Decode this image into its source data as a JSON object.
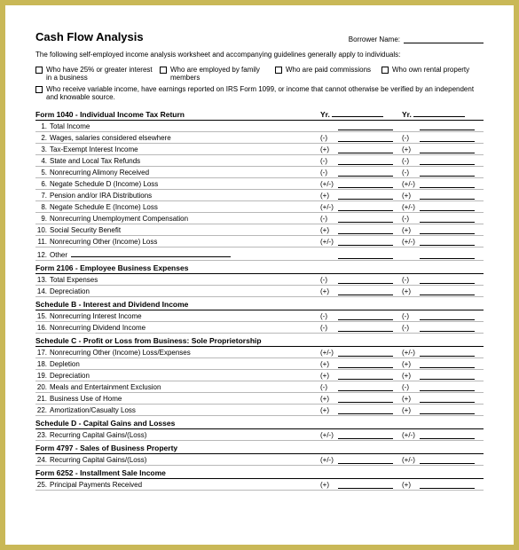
{
  "title": "Cash Flow Analysis",
  "borrower_label": "Borrower Name:",
  "intro": "The following self-employed income analysis worksheet and accompanying guidelines generally apply to individuals:",
  "checks": {
    "c1": "Who have 25% or greater interest in a business",
    "c2": "Who are employed by family members",
    "c3": "Who are paid commissions",
    "c4": "Who own rental property",
    "c5": "Who receive variable income, have earnings reported on IRS Form 1099, or income that cannot otherwise be verified by an independent and knowable source."
  },
  "yr_label": "Yr.",
  "sections": [
    {
      "heading": "Form 1040 - Individual Income Tax Return",
      "show_yr": true,
      "rows": [
        {
          "n": "1.",
          "label": "Total Income",
          "s": ""
        },
        {
          "n": "2.",
          "label": "Wages, salaries considered elsewhere",
          "s": "(-)"
        },
        {
          "n": "3.",
          "label": "Tax-Exempt Interest Income",
          "s": "(+)"
        },
        {
          "n": "4.",
          "label": "State and Local Tax Refunds",
          "s": "(-)"
        },
        {
          "n": "5.",
          "label": "Nonrecurring Alimony Received",
          "s": "(-)"
        },
        {
          "n": "6.",
          "label": "Negate Schedule D (Income) Loss",
          "s": "(+/-)"
        },
        {
          "n": "7.",
          "label": "Pension and/or IRA Distributions",
          "s": "(+)"
        },
        {
          "n": "8.",
          "label": "Negate Schedule E (Income) Loss",
          "s": "(+/-)"
        },
        {
          "n": "9.",
          "label": "Nonrecurring Unemployment Compensation",
          "s": "(-)"
        },
        {
          "n": "10.",
          "label": "Social Security Benefit",
          "s": "(+)"
        },
        {
          "n": "11.",
          "label": "Nonrecurring Other (Income) Loss",
          "s": "(+/-)"
        },
        {
          "n": "12.",
          "label": "Other",
          "s": "",
          "open": true
        }
      ]
    },
    {
      "heading": "Form 2106 - Employee Business Expenses",
      "rows": [
        {
          "n": "13.",
          "label": "Total Expenses",
          "s": "(-)"
        },
        {
          "n": "14.",
          "label": "Depreciation",
          "s": "(+)"
        }
      ]
    },
    {
      "heading": "Schedule B - Interest and Dividend Income",
      "rows": [
        {
          "n": "15.",
          "label": "Nonrecurring Interest Income",
          "s": "(-)"
        },
        {
          "n": "16.",
          "label": "Nonrecurring Dividend Income",
          "s": "(-)"
        }
      ]
    },
    {
      "heading": "Schedule C - Profit or Loss from Business: Sole Proprietorship",
      "rows": [
        {
          "n": "17.",
          "label": "Nonrecurring Other (Income) Loss/Expenses",
          "s": "(+/-)"
        },
        {
          "n": "18.",
          "label": "Depletion",
          "s": "(+)"
        },
        {
          "n": "19.",
          "label": "Depreciation",
          "s": "(+)"
        },
        {
          "n": "20.",
          "label": "Meals and Entertainment Exclusion",
          "s": "(-)"
        },
        {
          "n": "21.",
          "label": "Business Use of Home",
          "s": "(+)"
        },
        {
          "n": "22.",
          "label": "Amortization/Casualty Loss",
          "s": "(+)"
        }
      ]
    },
    {
      "heading": "Schedule D - Capital Gains and Losses",
      "rows": [
        {
          "n": "23.",
          "label": "Recurring Capital Gains/(Loss)",
          "s": "(+/-)"
        }
      ]
    },
    {
      "heading": "Form 4797 - Sales of Business Property",
      "rows": [
        {
          "n": "24.",
          "label": "Recurring Capital Gains/(Loss)",
          "s": "(+/-)"
        }
      ]
    },
    {
      "heading": "Form 6252 - Installment Sale Income",
      "rows": [
        {
          "n": "25.",
          "label": "Principal Payments Received",
          "s": "(+)"
        }
      ]
    }
  ]
}
